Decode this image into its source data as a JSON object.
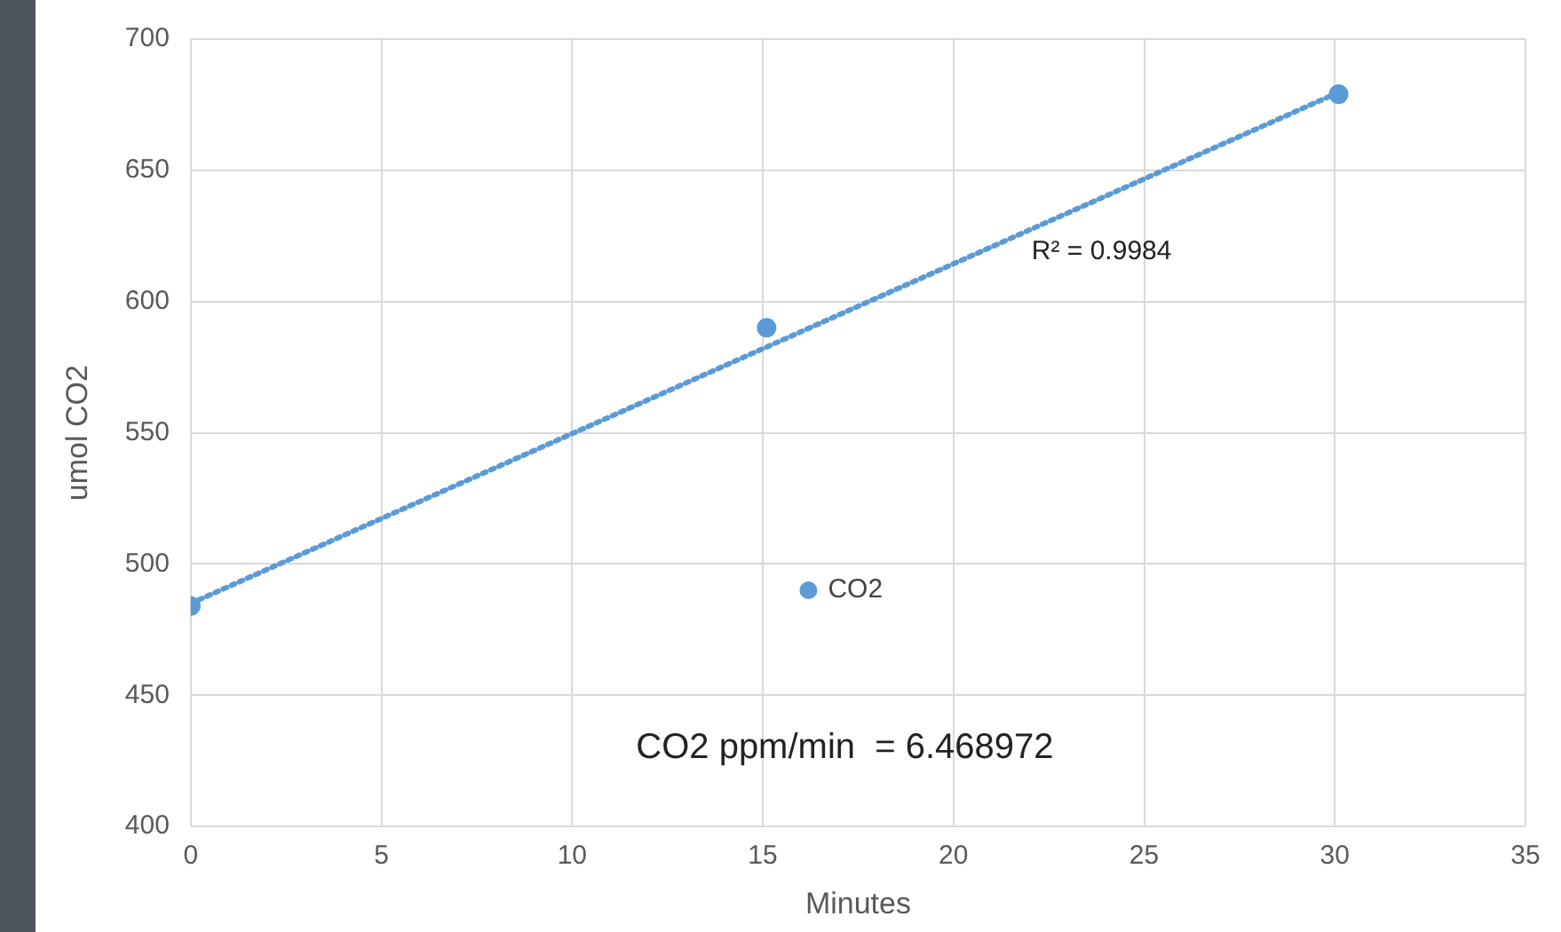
{
  "chart_data": {
    "type": "scatter",
    "xlabel": "Minutes",
    "ylabel": "umol CO2",
    "x": [
      0,
      15.1,
      30.1
    ],
    "series": [
      {
        "name": "CO2",
        "color": "#5b9bd5",
        "values": [
          484,
          590,
          679
        ],
        "marker": "circle"
      },
      {
        "type": "line",
        "x": [
          0,
          30.1
        ],
        "values": [
          485,
          679.7
        ],
        "color": "#5b9bd5",
        "line_style": "dotted",
        "marker": "none"
      }
    ],
    "xlim": [
      0,
      35
    ],
    "xticks": [
      0,
      5,
      10,
      15,
      20,
      25,
      30,
      35
    ],
    "ylim": [
      400,
      700
    ],
    "yticks": [
      400,
      450,
      500,
      550,
      600,
      650,
      700
    ],
    "grid": true,
    "legend": "bottom",
    "annotations": [
      "R² = 0.9984",
      "CO2 ppm/min  = 6.468972"
    ]
  }
}
